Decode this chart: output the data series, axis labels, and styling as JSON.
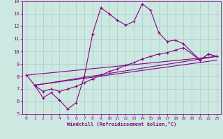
{
  "xlabel": "Windchill (Refroidissement éolien,°C)",
  "bg_color": "#cce8e0",
  "grid_color": "#aacccc",
  "line_color": "#880088",
  "xlim": [
    -0.5,
    23.5
  ],
  "ylim": [
    5,
    14
  ],
  "xticks": [
    0,
    1,
    2,
    3,
    4,
    5,
    6,
    7,
    8,
    9,
    10,
    11,
    12,
    13,
    14,
    15,
    16,
    17,
    18,
    19,
    20,
    21,
    22,
    23
  ],
  "yticks": [
    5,
    6,
    7,
    8,
    9,
    10,
    11,
    12,
    13,
    14
  ],
  "line1_x": [
    0,
    1,
    2,
    3,
    4,
    5,
    6,
    7,
    8,
    9,
    10,
    11,
    12,
    13,
    14,
    15,
    16,
    17,
    18,
    19,
    21,
    22,
    23
  ],
  "line1_y": [
    8.1,
    7.3,
    6.3,
    6.7,
    6.1,
    5.4,
    5.9,
    8.0,
    11.4,
    13.5,
    13.0,
    12.5,
    12.1,
    12.4,
    13.8,
    13.3,
    11.5,
    10.8,
    10.9,
    10.6,
    9.3,
    9.8,
    9.6
  ],
  "line2_x": [
    1,
    2,
    3,
    4,
    5,
    6,
    7,
    8,
    9,
    10,
    11,
    12,
    13,
    14,
    15,
    16,
    17,
    18,
    19,
    21,
    22,
    23
  ],
  "line2_y": [
    7.3,
    6.8,
    7.0,
    6.8,
    7.0,
    7.2,
    7.5,
    7.8,
    8.1,
    8.4,
    8.6,
    8.9,
    9.1,
    9.4,
    9.6,
    9.8,
    9.9,
    10.1,
    10.3,
    9.3,
    9.8,
    9.6
  ],
  "line4_x": [
    0,
    23
  ],
  "line4_y": [
    8.1,
    9.6
  ],
  "line5_x": [
    1,
    23
  ],
  "line5_y": [
    7.3,
    9.6
  ],
  "line6_x": [
    1,
    23
  ],
  "line6_y": [
    7.3,
    9.3
  ]
}
